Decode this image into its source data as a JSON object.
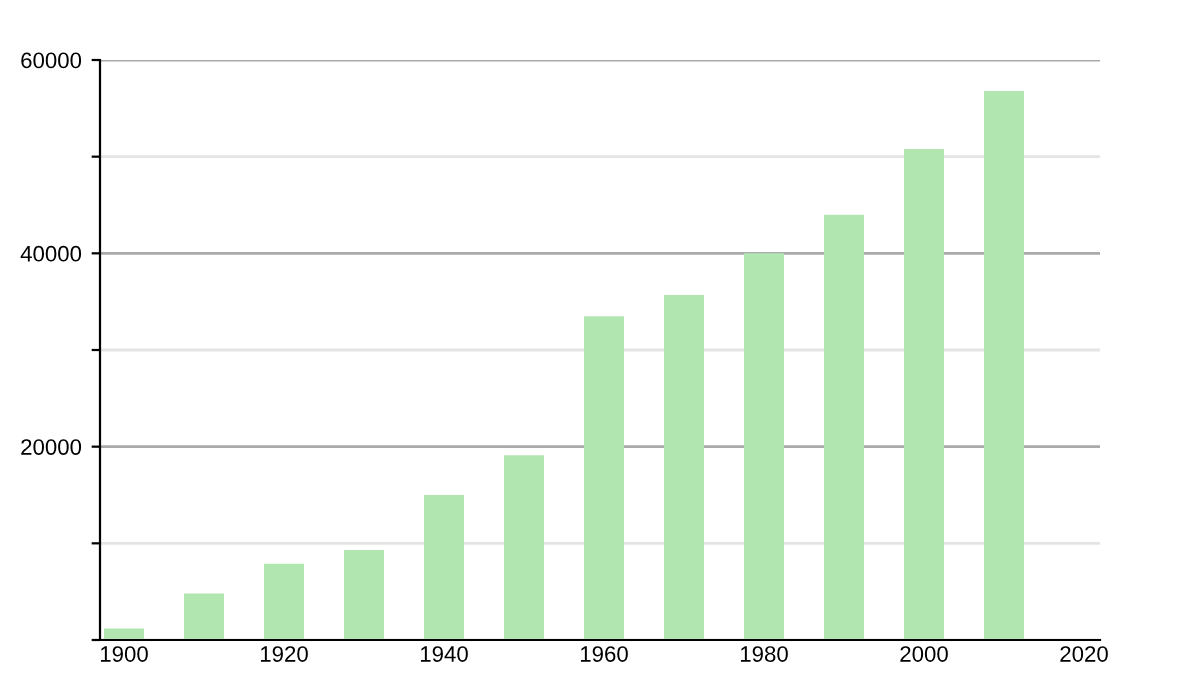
{
  "chart_data": {
    "type": "bar",
    "x": [
      1900,
      1910,
      1920,
      1930,
      1940,
      1950,
      1960,
      1970,
      1980,
      1990,
      2000,
      2010
    ],
    "values": [
      1200,
      4800,
      7900,
      9300,
      15000,
      19100,
      33500,
      35700,
      40000,
      44000,
      50800,
      56800
    ],
    "color": "#b2e6b0",
    "xlim": [
      1897,
      2022
    ],
    "xticks": [
      1900,
      1920,
      1940,
      1960,
      1980,
      2000,
      2020
    ],
    "ylim": [
      0,
      60000
    ],
    "yticks": [
      {
        "value": 0,
        "label": null
      },
      {
        "value": 10000,
        "label": null
      },
      20000,
      {
        "value": 30000,
        "label": null
      },
      40000,
      {
        "value": 50000,
        "label": null
      },
      60000
    ],
    "grid": "y"
  }
}
